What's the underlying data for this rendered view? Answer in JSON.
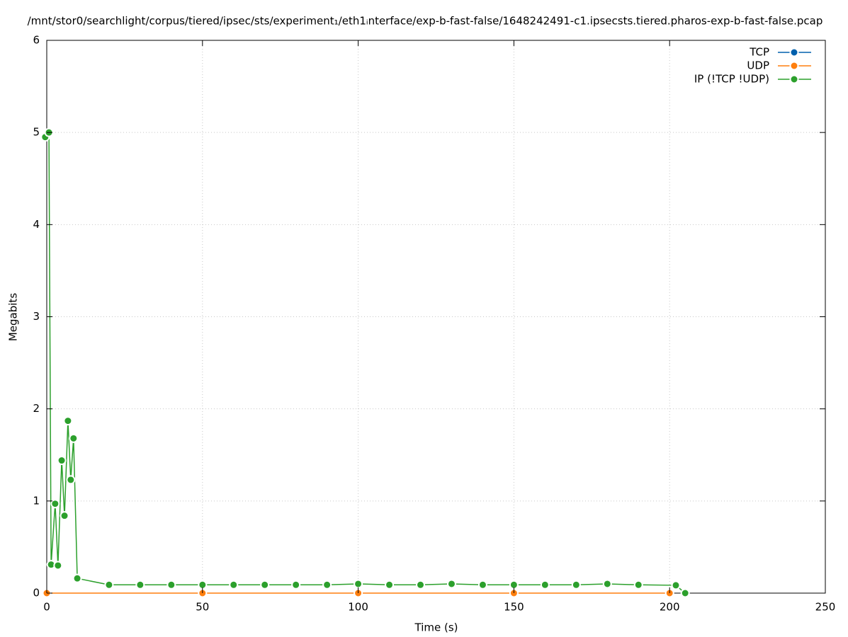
{
  "chart_data": {
    "type": "line",
    "title": "/mnt/stor0/searchlight/corpus/tiered/ipsec/sts/experiment₁/eth1ᵢnterface/exp-b-fast-false/1648242491-c1.ipsecsts.tiered.pharos-exp-b-fast-false.pcap",
    "x_label": "Time (s)",
    "y_label": "Megabits",
    "xlim": [
      0,
      250
    ],
    "xticks": [
      0,
      50,
      100,
      150,
      200,
      250
    ],
    "ylim": [
      0,
      6
    ],
    "yticks": [
      0,
      1,
      2,
      3,
      4,
      5,
      6
    ],
    "grid": true,
    "legend": "top-right",
    "series": [
      {
        "name": "TCP",
        "color": "#0060ad",
        "x": [],
        "values": []
      },
      {
        "name": "UDP",
        "color": "#ff7f0e",
        "x": [
          0,
          50,
          100,
          150,
          200
        ],
        "values": [
          0,
          0,
          0,
          0,
          0
        ]
      },
      {
        "name": "IP (!TCP  !UDP)",
        "color": "#2ca02c",
        "x": [
          -0.5,
          0.7,
          1.4,
          2.7,
          3.6,
          4.8,
          5.7,
          6.8,
          7.7,
          8.6,
          9.8,
          20,
          30,
          40,
          50,
          60,
          70,
          80,
          90,
          100,
          110,
          120,
          130,
          140,
          150,
          160,
          170,
          180,
          190,
          202,
          205
        ],
        "values": [
          4.95,
          5.0,
          0.31,
          0.97,
          0.3,
          1.44,
          0.84,
          1.87,
          1.23,
          1.68,
          0.16,
          0.09,
          0.09,
          0.09,
          0.09,
          0.09,
          0.09,
          0.09,
          0.09,
          0.1,
          0.09,
          0.09,
          0.1,
          0.09,
          0.09,
          0.09,
          0.09,
          0.1,
          0.09,
          0.085,
          0
        ]
      }
    ]
  }
}
